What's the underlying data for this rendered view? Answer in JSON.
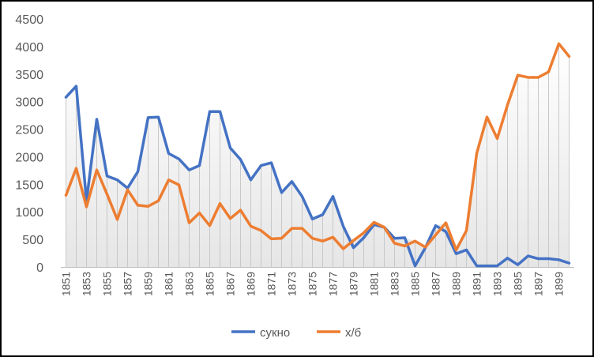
{
  "chart_data": {
    "type": "line",
    "title": "",
    "xlabel": "",
    "ylabel": "",
    "ylim": [
      0,
      4500
    ],
    "yticks": [
      0,
      500,
      1000,
      1500,
      2000,
      2500,
      3000,
      3500,
      4000,
      4500
    ],
    "x": [
      1851,
      1852,
      1853,
      1854,
      1855,
      1856,
      1857,
      1858,
      1859,
      1860,
      1861,
      1862,
      1863,
      1864,
      1865,
      1866,
      1867,
      1868,
      1869,
      1870,
      1871,
      1872,
      1873,
      1874,
      1875,
      1876,
      1877,
      1878,
      1879,
      1880,
      1881,
      1882,
      1883,
      1884,
      1885,
      1886,
      1887,
      1888,
      1889,
      1890,
      1891,
      1892,
      1893,
      1894,
      1895,
      1896,
      1897,
      1898,
      1899,
      1900
    ],
    "x_tick_labels": [
      1851,
      1853,
      1855,
      1857,
      1859,
      1861,
      1863,
      1865,
      1867,
      1869,
      1871,
      1873,
      1875,
      1877,
      1879,
      1881,
      1883,
      1885,
      1887,
      1889,
      1891,
      1893,
      1895,
      1897,
      1899
    ],
    "grid": "vertical drop lines per year",
    "legend_position": "bottom",
    "series": [
      {
        "name": "сукно",
        "color": "#4472C4",
        "values": [
          3080,
          3280,
          1200,
          2680,
          1650,
          1580,
          1430,
          1730,
          2710,
          2720,
          2060,
          1960,
          1760,
          1840,
          2820,
          2820,
          2160,
          1950,
          1580,
          1840,
          1890,
          1350,
          1550,
          1280,
          870,
          950,
          1280,
          740,
          350,
          530,
          770,
          720,
          520,
          530,
          20,
          350,
          750,
          640,
          240,
          310,
          20,
          20,
          20,
          160,
          40,
          200,
          150,
          150,
          130,
          70
        ]
      },
      {
        "name": "х/б",
        "color": "#ED7D31",
        "values": [
          1300,
          1790,
          1090,
          1760,
          1320,
          860,
          1400,
          1120,
          1100,
          1200,
          1580,
          1490,
          800,
          980,
          750,
          1150,
          880,
          1030,
          740,
          660,
          510,
          520,
          700,
          700,
          520,
          470,
          540,
          330,
          480,
          620,
          810,
          720,
          430,
          380,
          470,
          360,
          580,
          800,
          310,
          660,
          2060,
          2720,
          2330,
          2940,
          3480,
          3440,
          3440,
          3540,
          4050,
          3820
        ]
      }
    ]
  }
}
